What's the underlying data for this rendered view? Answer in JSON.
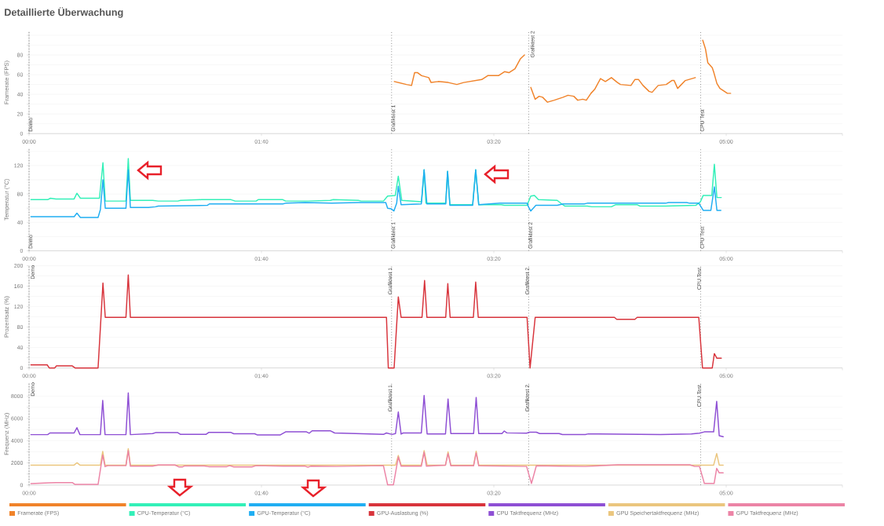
{
  "chart_data": [
    {
      "type": "line",
      "title": "Detaillierte Überwachung",
      "ylabel": "Framerate (FPS)",
      "xlim": [
        0,
        350
      ],
      "ylim": [
        0,
        104
      ],
      "xticks": [
        {
          "value": 0,
          "label": "00:00"
        },
        {
          "value": 100,
          "label": "01:40"
        },
        {
          "value": 200,
          "label": "03:20"
        },
        {
          "value": 300,
          "label": "05:00"
        },
        {
          "value": 350,
          "label": null
        }
      ],
      "yticks": [
        0,
        {
          "value": 10,
          "label": null
        },
        20,
        {
          "value": 30,
          "label": null
        },
        40,
        {
          "value": 50,
          "label": null
        },
        60,
        {
          "value": 70,
          "label": null
        },
        80,
        {
          "value": 90,
          "label": null
        },
        {
          "value": 100,
          "label": null
        }
      ],
      "grid": "y",
      "legend": "bottom",
      "ref_lines": [
        {
          "axis": "x",
          "value": 0,
          "label": "Demo",
          "color": "#555555",
          "line_style": "dotted"
        },
        {
          "axis": "x",
          "value": 156,
          "label": "Grafiktest 1",
          "color": "#555555",
          "line_style": "dotted"
        },
        {
          "axis": "x",
          "value": 215,
          "label": "Grafiktest 2",
          "color": "#555555",
          "line_style": "dotted"
        },
        {
          "axis": "x",
          "value": 289,
          "label": "CPU Test",
          "color": "#555555",
          "line_style": "dotted"
        }
      ],
      "series": [
        {
          "name": "Framerate (FPS)",
          "color": "#f0832a",
          "x": [
            157.2,
            162.4,
            164.6,
            165.9,
            167.2,
            168.9,
            172.0,
            173.0,
            176.1,
            180.4,
            184.1,
            187.0,
            194.8,
            197.4,
            202.0,
            204.6,
            206.5,
            209.1,
            211.4,
            213.2,
            214.5,
            215.9,
            217.8,
            219.5,
            221.0,
            223.1,
            226.0,
            229.8,
            231.9,
            234.4,
            236.1,
            238.3,
            239.8,
            241.8,
            243.4,
            245.9,
            248.0,
            250.6,
            253.2,
            254.5,
            259.0,
            260.7,
            262.3,
            264.2,
            266.8,
            268.1,
            270.7,
            274.2,
            276.6,
            277.6,
            279.1,
            282.4,
            286.7,
            288.5,
            289.9,
            291.1,
            292.1,
            294.0,
            294.7,
            296.0,
            297.3,
            298.6,
            300.5,
            301.9
          ],
          "values": [
            53,
            50,
            49,
            62,
            62,
            59,
            57,
            52,
            53,
            52,
            50,
            52,
            55,
            59,
            59,
            63,
            62,
            66,
            76,
            80,
            null,
            47,
            35,
            38,
            37,
            32,
            34,
            37,
            39,
            38,
            34,
            35,
            34,
            41,
            45,
            56,
            53,
            57,
            52,
            50,
            49,
            55,
            55,
            49,
            43,
            42,
            49,
            50,
            54,
            54,
            46,
            54,
            57,
            null,
            95,
            86,
            72,
            67,
            62,
            51,
            46,
            44,
            41,
            41
          ]
        }
      ]
    },
    {
      "type": "line",
      "ylabel": "Temperatur (°C)",
      "xlim": [
        0,
        350
      ],
      "ylim": [
        0,
        144
      ],
      "xticks": [
        {
          "value": 0,
          "label": "00:00"
        },
        {
          "value": 100,
          "label": "01:40"
        },
        {
          "value": 200,
          "label": "03:20"
        },
        {
          "value": 300,
          "label": "05:00"
        },
        {
          "value": 350,
          "label": null
        }
      ],
      "yticks": [
        0,
        {
          "value": 20,
          "label": null
        },
        40,
        {
          "value": 60,
          "label": null
        },
        80,
        {
          "value": 100,
          "label": null
        },
        120,
        {
          "value": 140,
          "label": null
        }
      ],
      "grid": "y",
      "legend": "bottom",
      "ref_lines": [
        {
          "axis": "x",
          "value": 0,
          "label": "Demo",
          "color": "#555555",
          "line_style": "dotted"
        },
        {
          "axis": "x",
          "value": 156,
          "label": "Grafiktest 1",
          "color": "#555555",
          "line_style": "dotted"
        },
        {
          "axis": "x",
          "value": 215,
          "label": "Grafiktest 2",
          "color": "#555555",
          "line_style": "dotted"
        },
        {
          "axis": "x",
          "value": 289,
          "label": "CPU Test",
          "color": "#555555",
          "line_style": "dotted"
        }
      ],
      "series": [
        {
          "name": "CPU-Temperatur (°C)",
          "color": "#33f0b8",
          "x": [
            0.8,
            8.0,
            9.2,
            11.6,
            19.4,
            20.6,
            22.1,
            30.3,
            31.8,
            32.8,
            41.7,
            42.7,
            43.6,
            53.2,
            55.6,
            64.0,
            65.2,
            74.2,
            76.1,
            86.9,
            88.7,
            97.7,
            98.6,
            109.2,
            110.4,
            118.8,
            120.0,
            129.6,
            130.9,
            141.7,
            142.9,
            152.5,
            154.3,
            157.6,
            158.9,
            160.4,
            168.9,
            170.0,
            170.8,
            179.3,
            180.1,
            181.1,
            190.9,
            192.2,
            193.5,
            203.2,
            204.6,
            214.3,
            215.9,
            217.5,
            219.2,
            227.3,
            229.2,
            230.5,
            240.2,
            242.2,
            250.6,
            252.5,
            261.6,
            262.9,
            273.9,
            286.9,
            288.9,
            290.1,
            293.8,
            294.9,
            296.0,
            297.9
          ],
          "values": [
            72,
            72,
            74,
            73,
            73,
            81,
            74,
            74,
            124,
            70,
            70,
            130,
            71,
            71,
            70,
            70,
            71,
            72,
            72,
            72,
            70,
            70,
            72,
            72,
            70,
            70,
            70,
            71,
            72,
            71,
            70,
            70,
            77,
            78,
            105,
            71,
            69,
            114,
            67,
            67,
            112,
            65,
            65,
            114,
            65,
            65,
            64,
            64,
            77,
            78,
            72,
            71,
            66,
            63,
            63,
            62,
            62,
            65,
            65,
            63,
            63,
            64,
            69,
            78,
            78,
            122,
            75,
            75
          ]
        },
        {
          "name": "GPU-Temperatur (°C)",
          "color": "#20aef2",
          "x": [
            0.8,
            19.4,
            20.6,
            22.1,
            29.7,
            30.7,
            31.8,
            32.8,
            41.7,
            42.7,
            43.6,
            51.4,
            54.4,
            55.6,
            76.7,
            77.6,
            109.2,
            110.4,
            118.8,
            130.3,
            141.7,
            153.5,
            154.3,
            155.9,
            157.0,
            158.2,
            158.9,
            160.1,
            168.8,
            170.0,
            171.2,
            179.3,
            180.1,
            181.1,
            190.9,
            192.2,
            193.5,
            202.6,
            214.3,
            214.9,
            215.9,
            218.1,
            227.3,
            229.8,
            238.9,
            240.2,
            273.9,
            275.2,
            283.0,
            284.3,
            288.2,
            290.1,
            293.4,
            294.9,
            296.0,
            297.7
          ],
          "values": [
            48,
            48,
            53,
            47,
            47,
            58,
            100,
            60,
            60,
            114,
            61,
            61,
            62,
            63,
            64,
            66,
            66,
            67,
            68,
            67,
            68,
            68,
            60,
            59,
            56,
            67,
            91,
            65,
            66,
            114,
            66,
            66,
            112,
            64,
            64,
            114,
            65,
            67,
            67,
            62,
            56,
            64,
            64,
            66,
            66,
            67,
            67,
            68,
            68,
            67,
            67,
            57,
            57,
            90,
            57,
            57
          ]
        }
      ]
    },
    {
      "type": "line",
      "ylabel": "Prozentsatz (%)",
      "xlim": [
        0,
        350
      ],
      "ylim": [
        0,
        200
      ],
      "xticks": [
        {
          "value": 0,
          "label": "00:00"
        },
        {
          "value": 100,
          "label": "01:40"
        },
        {
          "value": 200,
          "label": "03:20"
        },
        {
          "value": 300,
          "label": "05:00"
        },
        {
          "value": 350,
          "label": null
        }
      ],
      "yticks": [
        0,
        {
          "value": 20,
          "label": null
        },
        40,
        {
          "value": 60,
          "label": null
        },
        80,
        {
          "value": 100,
          "label": null
        },
        120,
        {
          "value": 140,
          "label": null
        },
        160,
        {
          "value": 180,
          "label": null
        },
        200
      ],
      "grid": "y",
      "legend": "bottom",
      "ref_lines": [
        {
          "axis": "x",
          "value": 0,
          "label": "Demo",
          "color": "#555555",
          "line_style": "dotted"
        },
        {
          "axis": "x",
          "value": 156,
          "label": "Grafiktest 1",
          "color": "#555555",
          "line_style": "dotted"
        },
        {
          "axis": "x",
          "value": 215,
          "label": "Grafiktest 2",
          "color": "#555555",
          "line_style": "dotted"
        },
        {
          "axis": "x",
          "value": 289,
          "label": "CPU Test",
          "color": "#555555",
          "line_style": "dotted"
        }
      ],
      "series": [
        {
          "name": "GPU-Auslastung (%)",
          "color": "#d8343c",
          "x": [
            0.8,
            7.8,
            8.7,
            11.0,
            11.8,
            18.6,
            19.8,
            29.7,
            31.8,
            32.8,
            41.7,
            42.7,
            43.6,
            153.8,
            154.6,
            157.1,
            158.9,
            160.1,
            169.1,
            170.2,
            171.2,
            179.3,
            180.2,
            181.2,
            191.2,
            192.2,
            193.3,
            214.3,
            215.6,
            217.8,
            251.9,
            252.9,
            260.7,
            261.7,
            288.2,
            289.8,
            294.0,
            294.9,
            296.0,
            297.9
          ],
          "values": [
            6,
            6,
            0,
            0,
            4,
            4,
            0,
            0,
            166,
            99,
            99,
            182,
            99,
            99,
            0,
            0,
            139,
            99,
            99,
            171,
            99,
            99,
            165,
            99,
            99,
            168,
            99,
            99,
            0,
            99,
            99,
            95,
            95,
            99,
            99,
            0,
            0,
            28,
            19,
            19
          ]
        }
      ]
    },
    {
      "type": "line",
      "ylabel": "Frequenz (MHz)",
      "xlim": [
        0,
        350
      ],
      "ylim": [
        0,
        9200
      ],
      "xticks": [
        {
          "value": 0,
          "label": "00:00"
        },
        {
          "value": 100,
          "label": "01:40"
        },
        {
          "value": 200,
          "label": "03:20"
        },
        {
          "value": 300,
          "label": "05:00"
        },
        {
          "value": 350,
          "label": null
        }
      ],
      "yticks": [
        0,
        {
          "value": 1000,
          "label": null
        },
        2000,
        {
          "value": 3000,
          "label": null
        },
        4000,
        {
          "value": 5000,
          "label": null
        },
        6000,
        {
          "value": 7000,
          "label": null
        },
        8000
      ],
      "grid": "y",
      "legend": "bottom",
      "ref_lines": [
        {
          "axis": "x",
          "value": 0,
          "label": "Demo",
          "color": "#555555",
          "line_style": "dotted"
        },
        {
          "axis": "x",
          "value": 156,
          "label": "Grafiktest 1",
          "color": "#555555",
          "line_style": "dotted"
        },
        {
          "axis": "x",
          "value": 215,
          "label": "Grafiktest 2",
          "color": "#555555",
          "line_style": "dotted"
        },
        {
          "axis": "x",
          "value": 289,
          "label": "CPU Test",
          "color": "#555555",
          "line_style": "dotted"
        }
      ],
      "series": [
        {
          "name": "CPU Taktfrequenz (MHz)",
          "color": "#8e4fd4",
          "x": [
            0.8,
            8.0,
            9.0,
            19.4,
            20.6,
            21.9,
            30.7,
            31.7,
            32.7,
            41.7,
            42.7,
            43.6,
            53.2,
            54.4,
            64.0,
            65.2,
            76.1,
            77.3,
            86.9,
            88.1,
            97.1,
            98.3,
            108.0,
            110.4,
            119.4,
            120.6,
            121.8,
            129.6,
            131.5,
            152.5,
            153.8,
            156.2,
            157.7,
            158.9,
            160.1,
            161.0,
            168.8,
            170.0,
            171.3,
            179.2,
            180.3,
            181.5,
            191.3,
            192.4,
            193.5,
            203.5,
            204.5,
            205.6,
            214.1,
            215.4,
            218.3,
            219.7,
            228.1,
            229.5,
            239.4,
            240.7,
            271.7,
            285.0,
            288.5,
            290.6,
            294.6,
            295.9,
            297.0,
            298.7
          ],
          "values": [
            4540,
            4540,
            4690,
            4690,
            5170,
            4540,
            4540,
            7620,
            4540,
            4540,
            8300,
            4540,
            4640,
            4720,
            4720,
            4560,
            4560,
            4740,
            4740,
            4620,
            4620,
            4510,
            4510,
            4790,
            4790,
            4670,
            4890,
            4890,
            4690,
            4560,
            4690,
            4560,
            4640,
            6580,
            4590,
            4690,
            4690,
            8060,
            4610,
            4610,
            7740,
            4640,
            4640,
            7890,
            4640,
            4640,
            4870,
            4700,
            4670,
            4760,
            4760,
            4640,
            4640,
            4550,
            4550,
            4610,
            4550,
            4610,
            4670,
            4790,
            4790,
            7540,
            4440,
            4350
          ]
        },
        {
          "name": "GPU Speichertaktfrequenz (MHz)",
          "color": "#ebc67e",
          "x": [
            0.8,
            19.4,
            20.6,
            21.9,
            30.7,
            31.7,
            32.7,
            41.7,
            42.7,
            43.6,
            157.7,
            158.9,
            160.1,
            168.8,
            170.0,
            171.3,
            179.2,
            180.3,
            181.5,
            191.3,
            192.4,
            193.5,
            294.6,
            295.9,
            297.0,
            298.7
          ],
          "values": [
            1800,
            1800,
            2010,
            1800,
            1800,
            3040,
            1800,
            1800,
            3280,
            1800,
            1800,
            2670,
            1800,
            1800,
            3100,
            1800,
            1800,
            2990,
            1800,
            1800,
            3050,
            1800,
            1800,
            2840,
            1800,
            1800
          ]
        },
        {
          "name": "GPU Taktfrequenz (MHz)",
          "color": "#ec84a6",
          "x": [
            0.8,
            8.6,
            11.6,
            18.6,
            19.8,
            29.7,
            31.7,
            32.7,
            33.9,
            41.7,
            42.7,
            43.6,
            53.2,
            55.6,
            62.8,
            64.4,
            66.1,
            67.0,
            75.4,
            77.3,
            85.1,
            86.3,
            88.1,
            95.9,
            97.7,
            109.2,
            118.8,
            120.0,
            121.2,
            132.1,
            152.5,
            154.3,
            156.8,
            158.9,
            160.1,
            168.8,
            170.0,
            171.0,
            179.2,
            180.3,
            181.5,
            191.3,
            192.4,
            193.5,
            214.1,
            215.2,
            216.2,
            218.3,
            228.1,
            239.4,
            253.4,
            284.3,
            286.4,
            288.5,
            290.6,
            294.8,
            295.9,
            297.0,
            298.7
          ],
          "values": [
            130,
            200,
            230,
            230,
            60,
            60,
            2710,
            1660,
            1750,
            1750,
            3110,
            1700,
            1700,
            1810,
            1810,
            1640,
            1640,
            1730,
            1730,
            1660,
            1660,
            1750,
            1640,
            1640,
            1750,
            1700,
            1700,
            1610,
            1700,
            1680,
            1750,
            30,
            30,
            2530,
            1700,
            1700,
            2960,
            1700,
            1800,
            2840,
            1740,
            1740,
            2900,
            1740,
            1680,
            870,
            150,
            1740,
            1710,
            1680,
            1830,
            1830,
            1680,
            1680,
            150,
            150,
            1510,
            1100,
            1100
          ]
        }
      ]
    }
  ]
}
